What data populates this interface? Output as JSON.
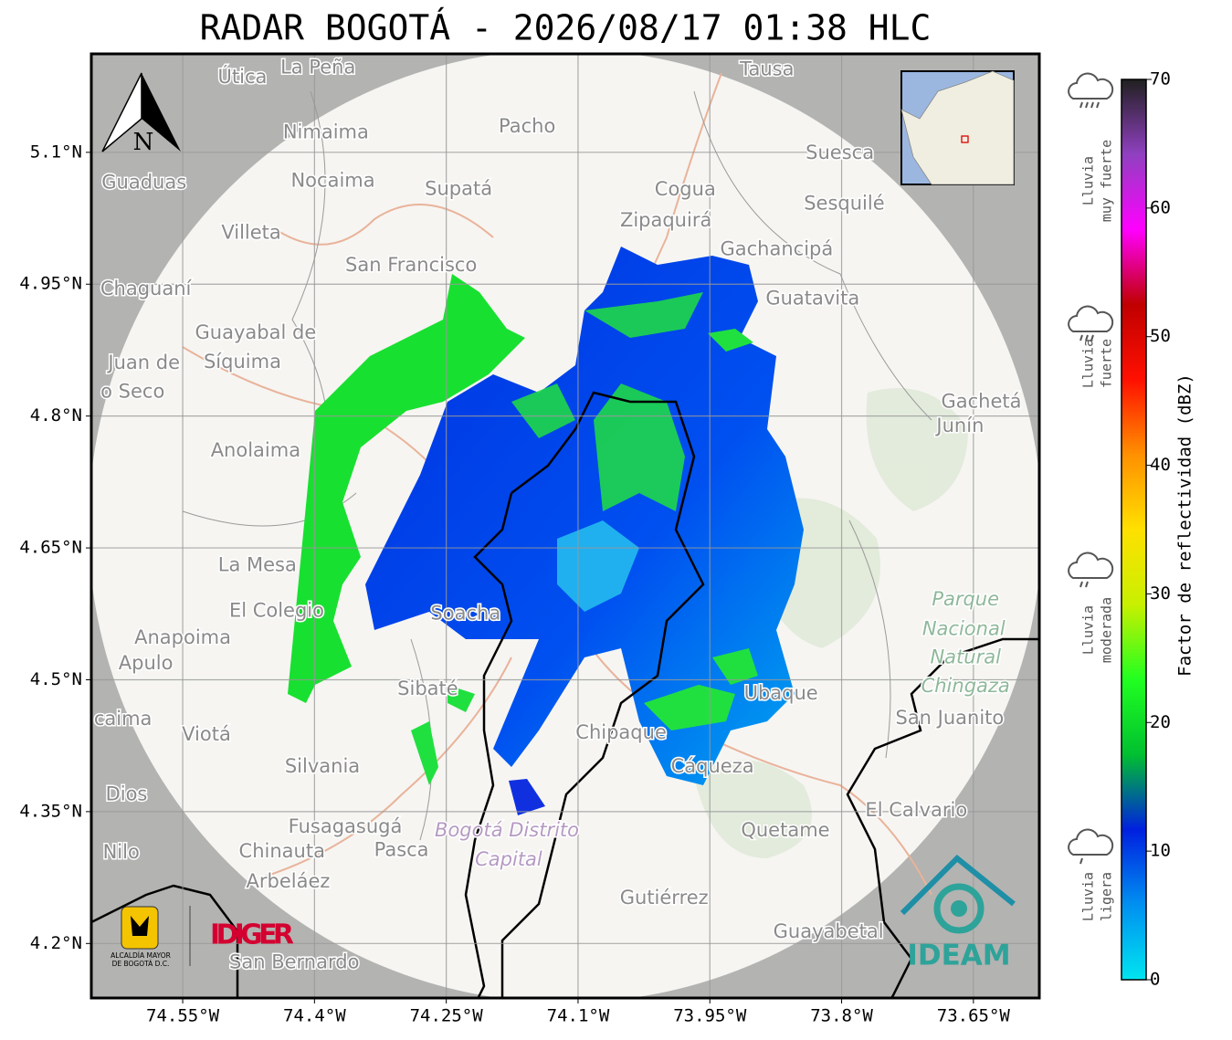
{
  "title": "RADAR BOGOTÁ - 2026/08/17 01:38 HLC",
  "map": {
    "xlim": [
      -74.654,
      -73.575
    ],
    "ylim": [
      4.138,
      5.212
    ],
    "xticks": [
      {
        "value": -74.55,
        "label": "74.55°W"
      },
      {
        "value": -74.4,
        "label": "74.4°W"
      },
      {
        "value": -74.25,
        "label": "74.25°W"
      },
      {
        "value": -74.1,
        "label": "74.1°W"
      },
      {
        "value": -73.95,
        "label": "73.95°W"
      },
      {
        "value": -73.8,
        "label": "73.8°W"
      },
      {
        "value": -73.65,
        "label": "73.65°W"
      }
    ],
    "yticks": [
      {
        "value": 5.1,
        "label": "5.1°N"
      },
      {
        "value": 4.95,
        "label": "4.95°N"
      },
      {
        "value": 4.8,
        "label": "4.8°N"
      },
      {
        "value": 4.65,
        "label": "4.65°N"
      },
      {
        "value": 4.5,
        "label": "4.5°N"
      },
      {
        "value": 4.35,
        "label": "4.35°N"
      },
      {
        "value": 4.2,
        "label": "4.2°N"
      }
    ],
    "grid": true,
    "north": "N",
    "places": [
      {
        "name": "Útica",
        "lon": -74.482,
        "lat": 5.185
      },
      {
        "name": "La Peña",
        "lon": -74.396,
        "lat": 5.196
      },
      {
        "name": "Tausa",
        "lon": -73.885,
        "lat": 5.194
      },
      {
        "name": "Pacho",
        "lon": -74.158,
        "lat": 5.129
      },
      {
        "name": "Nimaima",
        "lon": -74.387,
        "lat": 5.122
      },
      {
        "name": "Guaduas",
        "lon": -74.594,
        "lat": 5.065
      },
      {
        "name": "Nocaima",
        "lon": -74.379,
        "lat": 5.067
      },
      {
        "name": "Supatá",
        "lon": -74.236,
        "lat": 5.058
      },
      {
        "name": "Cogua",
        "lon": -73.978,
        "lat": 5.057
      },
      {
        "name": "Suesca",
        "lon": -73.802,
        "lat": 5.099
      },
      {
        "name": "Sesquilé",
        "lon": -73.797,
        "lat": 5.041
      },
      {
        "name": "Zipaquirá",
        "lon": -74.0,
        "lat": 5.022
      },
      {
        "name": "Villeta",
        "lon": -74.472,
        "lat": 5.008
      },
      {
        "name": "Gachancipá",
        "lon": -73.874,
        "lat": 4.989
      },
      {
        "name": "San Francisco",
        "lon": -74.29,
        "lat": 4.971
      },
      {
        "name": "Chaguaní",
        "lon": -74.592,
        "lat": 4.944
      },
      {
        "name": "Guatavita",
        "lon": -73.833,
        "lat": 4.933
      },
      {
        "name": "Guayabal de",
        "lon": -74.467,
        "lat": 4.894
      },
      {
        "name": "Síquima",
        "lon": -74.482,
        "lat": 4.861
      },
      {
        "name": "Juan de",
        "lon": -74.594,
        "lat": 4.86
      },
      {
        "name": "o Seco",
        "lon": -74.607,
        "lat": 4.827
      },
      {
        "name": "Gachetá",
        "lon": -73.641,
        "lat": 4.816
      },
      {
        "name": "Junín",
        "lon": -73.665,
        "lat": 4.788
      },
      {
        "name": "Anolaima",
        "lon": -74.467,
        "lat": 4.76
      },
      {
        "name": "La Mesa",
        "lon": -74.465,
        "lat": 4.63
      },
      {
        "name": "El Colegio",
        "lon": -74.443,
        "lat": 4.578
      },
      {
        "name": "Anapoima",
        "lon": -74.55,
        "lat": 4.547
      },
      {
        "name": "Apulo",
        "lon": -74.592,
        "lat": 4.518
      },
      {
        "name": "Soacha",
        "lon": -74.228,
        "lat": 4.575
      },
      {
        "name": "Parque",
        "lon": -73.659,
        "lat": 4.591,
        "style": "park"
      },
      {
        "name": "Nacional",
        "lon": -73.661,
        "lat": 4.557,
        "style": "park"
      },
      {
        "name": "Natural",
        "lon": -73.659,
        "lat": 4.525,
        "style": "park"
      },
      {
        "name": "Chingaza",
        "lon": -73.659,
        "lat": 4.492,
        "style": "park"
      },
      {
        "name": "San Juanito",
        "lon": -73.677,
        "lat": 4.456
      },
      {
        "name": "Sibaté",
        "lon": -74.271,
        "lat": 4.489
      },
      {
        "name": "caima",
        "lon": -74.618,
        "lat": 4.455
      },
      {
        "name": "Viotá",
        "lon": -74.523,
        "lat": 4.437
      },
      {
        "name": "Ubaque",
        "lon": -73.869,
        "lat": 4.484
      },
      {
        "name": "Chipaque",
        "lon": -74.051,
        "lat": 4.439
      },
      {
        "name": "Cáqueza",
        "lon": -73.947,
        "lat": 4.401
      },
      {
        "name": "Silvania",
        "lon": -74.391,
        "lat": 4.401
      },
      {
        "name": "Dios",
        "lon": -74.614,
        "lat": 4.369
      },
      {
        "name": "El Calvario",
        "lon": -73.715,
        "lat": 4.351
      },
      {
        "name": "Fusagasugá",
        "lon": -74.365,
        "lat": 4.332
      },
      {
        "name": "Quetame",
        "lon": -73.864,
        "lat": 4.328
      },
      {
        "name": "Bogotá Distrito",
        "lon": -74.181,
        "lat": 4.328,
        "style": "district"
      },
      {
        "name": "Capital",
        "lon": -74.179,
        "lat": 4.295,
        "style": "district"
      },
      {
        "name": "Nilo",
        "lon": -74.62,
        "lat": 4.303
      },
      {
        "name": "Chinauta",
        "lon": -74.437,
        "lat": 4.304
      },
      {
        "name": "Pasca",
        "lon": -74.301,
        "lat": 4.306
      },
      {
        "name": "Arbeláez",
        "lon": -74.43,
        "lat": 4.27
      },
      {
        "name": "Gutiérrez",
        "lon": -74.002,
        "lat": 4.251
      },
      {
        "name": "Guayabetal",
        "lon": -73.815,
        "lat": 4.213
      },
      {
        "name": "San Bernardo",
        "lon": -74.423,
        "lat": 4.178
      }
    ]
  },
  "logos": {
    "alcaldia": [
      "ALCALDÍA MAYOR",
      "DE BOGOTÁ D.C."
    ],
    "idiger": "IDIGER",
    "ideam": "IDEAM"
  },
  "colorbar": {
    "lim": [
      0,
      70
    ],
    "ticks": [
      0,
      10,
      20,
      30,
      40,
      50,
      60,
      70
    ],
    "label": "Factor de reflectividad (dBZ)",
    "colors": [
      "#00e5f0",
      "#0090f0",
      "#0020e0",
      "#00c030",
      "#20ff20",
      "#c8f000",
      "#ffe000",
      "#ff9000",
      "#ff1000",
      "#c00000",
      "#ff00ff",
      "#9040c0",
      "#202020"
    ],
    "categories": [
      [
        "Lluvia",
        "muy fuerte"
      ],
      [
        "Lluvia",
        "fuerte"
      ],
      [
        "Lluvia",
        "moderada"
      ],
      [
        "Lluvia",
        "ligera"
      ]
    ]
  }
}
